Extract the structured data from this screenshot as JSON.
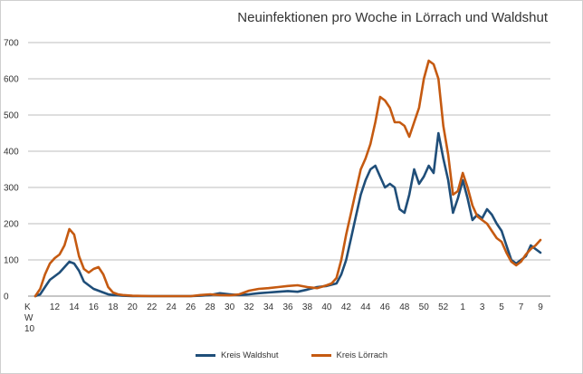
{
  "chart_data": {
    "type": "line",
    "title": "Neuinfektionen pro Woche in Lörrach und Waldshut",
    "xlabel": "",
    "ylabel": "",
    "ylim": [
      0,
      700
    ],
    "yticks": [
      "0",
      "100",
      "200",
      "300",
      "400",
      "500",
      "600",
      "700"
    ],
    "xlim": [
      0,
      52
    ],
    "xtick_first": [
      "K",
      "W",
      "10"
    ],
    "xticks": [
      {
        "x": 2,
        "label": "12"
      },
      {
        "x": 4,
        "label": "14"
      },
      {
        "x": 6,
        "label": "16"
      },
      {
        "x": 8,
        "label": "18"
      },
      {
        "x": 10,
        "label": "20"
      },
      {
        "x": 12,
        "label": "22"
      },
      {
        "x": 14,
        "label": "24"
      },
      {
        "x": 16,
        "label": "26"
      },
      {
        "x": 18,
        "label": "28"
      },
      {
        "x": 20,
        "label": "30"
      },
      {
        "x": 22,
        "label": "32"
      },
      {
        "x": 24,
        "label": "34"
      },
      {
        "x": 26,
        "label": "36"
      },
      {
        "x": 28,
        "label": "38"
      },
      {
        "x": 30,
        "label": "40"
      },
      {
        "x": 32,
        "label": "42"
      },
      {
        "x": 34,
        "label": "44"
      },
      {
        "x": 36,
        "label": "46"
      },
      {
        "x": 38,
        "label": "48"
      },
      {
        "x": 40,
        "label": "50"
      },
      {
        "x": 42,
        "label": "52"
      },
      {
        "x": 44,
        "label": "1"
      },
      {
        "x": 46,
        "label": "3"
      },
      {
        "x": 48,
        "label": "5"
      },
      {
        "x": 50,
        "label": "7"
      },
      {
        "x": 52,
        "label": "9"
      }
    ],
    "grid": true,
    "legend_position": "bottom",
    "series": [
      {
        "name": "Kreis Waldshut",
        "color": "#1f4e79",
        "points": [
          [
            0,
            0
          ],
          [
            0.5,
            5
          ],
          [
            1,
            25
          ],
          [
            1.5,
            45
          ],
          [
            2,
            55
          ],
          [
            2.5,
            65
          ],
          [
            3,
            80
          ],
          [
            3.5,
            95
          ],
          [
            4,
            90
          ],
          [
            4.5,
            70
          ],
          [
            5,
            40
          ],
          [
            5.5,
            30
          ],
          [
            6,
            20
          ],
          [
            6.5,
            15
          ],
          [
            7,
            10
          ],
          [
            7.5,
            5
          ],
          [
            8,
            3
          ],
          [
            9,
            1
          ],
          [
            10,
            0
          ],
          [
            12,
            0
          ],
          [
            14,
            0
          ],
          [
            16,
            0
          ],
          [
            17,
            1
          ],
          [
            18,
            3
          ],
          [
            19,
            8
          ],
          [
            20,
            5
          ],
          [
            21,
            3
          ],
          [
            22,
            5
          ],
          [
            23,
            8
          ],
          [
            24,
            10
          ],
          [
            25,
            12
          ],
          [
            26,
            14
          ],
          [
            27,
            12
          ],
          [
            28,
            18
          ],
          [
            29,
            25
          ],
          [
            30,
            28
          ],
          [
            31,
            35
          ],
          [
            31.5,
            60
          ],
          [
            32,
            100
          ],
          [
            32.5,
            160
          ],
          [
            33,
            220
          ],
          [
            33.5,
            280
          ],
          [
            34,
            320
          ],
          [
            34.5,
            350
          ],
          [
            35,
            360
          ],
          [
            35.5,
            330
          ],
          [
            36,
            300
          ],
          [
            36.5,
            310
          ],
          [
            37,
            300
          ],
          [
            37.5,
            240
          ],
          [
            38,
            230
          ],
          [
            38.5,
            280
          ],
          [
            39,
            350
          ],
          [
            39.5,
            310
          ],
          [
            40,
            330
          ],
          [
            40.5,
            360
          ],
          [
            41,
            340
          ],
          [
            41.5,
            450
          ],
          [
            42,
            380
          ],
          [
            42.5,
            320
          ],
          [
            43,
            230
          ],
          [
            43.5,
            270
          ],
          [
            44,
            320
          ],
          [
            44.5,
            270
          ],
          [
            45,
            210
          ],
          [
            45.5,
            225
          ],
          [
            46,
            215
          ],
          [
            46.5,
            240
          ],
          [
            47,
            225
          ],
          [
            47.5,
            200
          ],
          [
            48,
            180
          ],
          [
            48.5,
            140
          ],
          [
            49,
            100
          ],
          [
            49.5,
            90
          ],
          [
            50,
            100
          ],
          [
            50.5,
            110
          ],
          [
            51,
            140
          ],
          [
            51.5,
            130
          ],
          [
            52,
            120
          ]
        ]
      },
      {
        "name": "Kreis Lörrach",
        "color": "#c55a11",
        "points": [
          [
            0,
            0
          ],
          [
            0.5,
            20
          ],
          [
            1,
            60
          ],
          [
            1.5,
            90
          ],
          [
            2,
            105
          ],
          [
            2.5,
            115
          ],
          [
            3,
            140
          ],
          [
            3.5,
            185
          ],
          [
            4,
            170
          ],
          [
            4.5,
            110
          ],
          [
            5,
            75
          ],
          [
            5.5,
            65
          ],
          [
            6,
            75
          ],
          [
            6.5,
            80
          ],
          [
            7,
            60
          ],
          [
            7.5,
            25
          ],
          [
            8,
            10
          ],
          [
            8.5,
            5
          ],
          [
            9,
            3
          ],
          [
            10,
            1
          ],
          [
            12,
            0
          ],
          [
            14,
            0
          ],
          [
            16,
            0
          ],
          [
            17,
            3
          ],
          [
            18,
            5
          ],
          [
            19,
            3
          ],
          [
            20,
            2
          ],
          [
            21,
            5
          ],
          [
            22,
            15
          ],
          [
            23,
            20
          ],
          [
            24,
            22
          ],
          [
            25,
            25
          ],
          [
            26,
            28
          ],
          [
            27,
            30
          ],
          [
            28,
            25
          ],
          [
            29,
            22
          ],
          [
            30,
            30
          ],
          [
            30.5,
            35
          ],
          [
            31,
            50
          ],
          [
            31.5,
            100
          ],
          [
            32,
            170
          ],
          [
            32.5,
            230
          ],
          [
            33,
            290
          ],
          [
            33.5,
            350
          ],
          [
            34,
            380
          ],
          [
            34.5,
            420
          ],
          [
            35,
            480
          ],
          [
            35.5,
            550
          ],
          [
            36,
            540
          ],
          [
            36.5,
            520
          ],
          [
            37,
            480
          ],
          [
            37.5,
            480
          ],
          [
            38,
            470
          ],
          [
            38.5,
            440
          ],
          [
            39,
            480
          ],
          [
            39.5,
            520
          ],
          [
            40,
            600
          ],
          [
            40.5,
            650
          ],
          [
            41,
            640
          ],
          [
            41.5,
            600
          ],
          [
            42,
            470
          ],
          [
            42.5,
            390
          ],
          [
            43,
            280
          ],
          [
            43.5,
            290
          ],
          [
            44,
            340
          ],
          [
            44.5,
            300
          ],
          [
            45,
            250
          ],
          [
            45.5,
            220
          ],
          [
            46,
            210
          ],
          [
            46.5,
            200
          ],
          [
            47,
            180
          ],
          [
            47.5,
            160
          ],
          [
            48,
            150
          ],
          [
            48.5,
            120
          ],
          [
            49,
            95
          ],
          [
            49.5,
            85
          ],
          [
            50,
            95
          ],
          [
            50.5,
            115
          ],
          [
            51,
            130
          ],
          [
            51.5,
            140
          ],
          [
            52,
            155
          ]
        ]
      }
    ]
  }
}
